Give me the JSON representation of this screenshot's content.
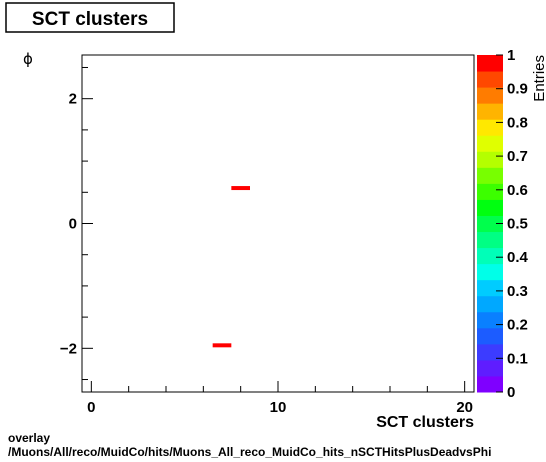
{
  "chart_data": {
    "type": "heatmap",
    "title": "SCT clusters",
    "xlabel": "SCT clusters",
    "ylabel": "ϕ",
    "zlabel": "Entries",
    "xlim": [
      -0.5,
      20.5
    ],
    "ylim": [
      -2.7,
      2.7
    ],
    "zlim": [
      0,
      1
    ],
    "x_ticks": [
      "0",
      "10",
      "20"
    ],
    "x_tick_values": [
      0,
      10,
      20
    ],
    "y_ticks": [
      "−2",
      "0",
      "2"
    ],
    "y_tick_values": [
      -2,
      0,
      2
    ],
    "z_ticks": [
      "0",
      "0.1",
      "0.2",
      "0.3",
      "0.4",
      "0.5",
      "0.6",
      "0.7",
      "0.8",
      "0.9",
      "1"
    ],
    "cells": [
      {
        "x0": 7.5,
        "x1": 8.5,
        "y0": 0.54,
        "y1": 0.6,
        "value": 1
      },
      {
        "x0": 6.5,
        "x1": 7.5,
        "y0": -1.98,
        "y1": -1.92,
        "value": 1
      }
    ],
    "palette": [
      "#7f00ff",
      "#5f1dff",
      "#3c3cff",
      "#1c5cff",
      "#0a80ff",
      "#00a8ff",
      "#00ccff",
      "#00ffe8",
      "#00ffb8",
      "#00ff84",
      "#00ff4c",
      "#00ff10",
      "#3cff00",
      "#78ff00",
      "#b4ff00",
      "#e0ff00",
      "#ffe800",
      "#ffb400",
      "#ff7c00",
      "#ff4800",
      "#ff0000"
    ]
  },
  "footer": {
    "line1": "overlay",
    "line2": "/Muons/All/reco/MuidCo/hits/Muons_All_reco_MuidCo_hits_nSCTHitsPlusDeadvsPhi"
  }
}
